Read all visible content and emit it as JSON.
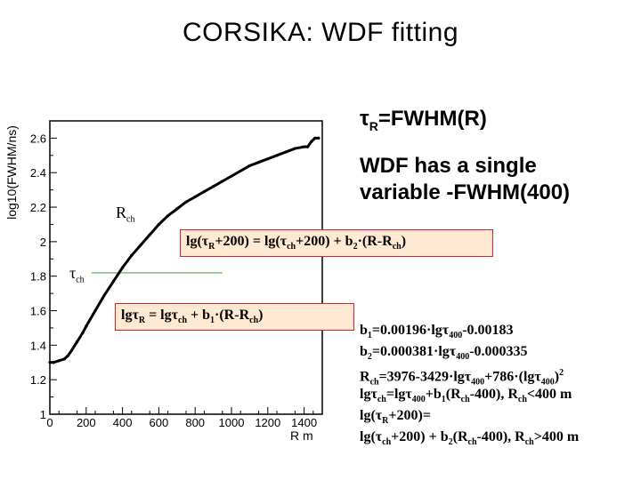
{
  "slide": {
    "title": "CORSIKA: WDF fitting"
  },
  "side_text": {
    "heading_tau": "τ",
    "heading_sub": "R",
    "heading_rest": "=FWHM(R)",
    "statement_line1": "WDF has a single",
    "statement_line2": "variable -FWHM(400)"
  },
  "annotations": {
    "rch_main": "R",
    "rch_sub": "ch",
    "tauch_main": "τ",
    "tauch_sub": "ch"
  },
  "formula_box_upper": {
    "p1": "lg(τ",
    "s1": "R",
    "p2": "+200) = lg(τ",
    "s2": "ch",
    "p3": "+200) + b",
    "s3": "2",
    "p4": "·(R-R",
    "s4": "ch",
    "p5": ")"
  },
  "formula_box_lower": {
    "p1": "lgτ",
    "s1": "R",
    "p2": " = lgτ",
    "s2": "ch",
    "p3": " + b",
    "s3": "1",
    "p4": "·(R-R",
    "s4": "ch",
    "p5": ")"
  },
  "equations": {
    "b1": {
      "a": "b",
      "as": "1",
      "b": "=0.00196·lgτ",
      "bs": "400",
      "c": "-0.00183"
    },
    "b2": {
      "a": "b",
      "as": "2",
      "b": "=0.000381·lgτ",
      "bs": "400",
      "c": "-0.000335"
    },
    "rch": {
      "a": "R",
      "as": "ch",
      "b": "=3976-3429·lgτ",
      "bs": "400",
      "c": "+786·(lgτ",
      "cs": "400",
      "d": ")",
      "dsup": "2"
    },
    "lgtauch": {
      "a": "lgτ",
      "as": "ch",
      "b": "=lgτ",
      "bs": "400",
      "c": "+b",
      "cs": "1",
      "d": "(R",
      "ds": "ch",
      "e": "-400), R",
      "es": "ch",
      "f": "<400 m"
    },
    "lgtaur_head": {
      "a": "lg(τ",
      "as": "R",
      "b": "+200)="
    },
    "lgtaur_tail": {
      "a": "lg(τ",
      "as": "ch",
      "b": "+200) + b",
      "bs": "2",
      "c": "(R",
      "cs": "ch",
      "d": "-400), R",
      "ds": "ch",
      "e": ">400 m"
    }
  },
  "chart_data": {
    "type": "line",
    "title": "",
    "xlabel": "R m",
    "ylabel": "log10(FWHM/ns)",
    "xlim": [
      0,
      1500
    ],
    "ylim": [
      1.0,
      2.7
    ],
    "x_ticks": [
      "0",
      "200",
      "400",
      "600",
      "800",
      "1000",
      "1200",
      "1400"
    ],
    "y_ticks": [
      "1",
      "1.2",
      "1.4",
      "1.6",
      "1.8",
      "2",
      "2.2",
      "2.4",
      "2.6"
    ],
    "grid": false,
    "reference_line": {
      "y": 1.82,
      "x_range": [
        230,
        950
      ],
      "color": "#7fbf7f"
    },
    "series": [
      {
        "color": "#000000",
        "x": [
          0,
          20,
          50,
          80,
          100,
          120,
          150,
          180,
          200,
          250,
          300,
          350,
          400,
          450,
          500,
          550,
          600,
          650,
          700,
          750,
          800,
          850,
          900,
          950,
          1000,
          1050,
          1100,
          1150,
          1200,
          1250,
          1300,
          1350,
          1400,
          1420,
          1440,
          1460,
          1480
        ],
        "y": [
          1.3,
          1.3,
          1.31,
          1.32,
          1.34,
          1.37,
          1.42,
          1.47,
          1.51,
          1.6,
          1.69,
          1.77,
          1.85,
          1.92,
          1.98,
          2.04,
          2.1,
          2.15,
          2.19,
          2.23,
          2.26,
          2.29,
          2.32,
          2.35,
          2.38,
          2.41,
          2.44,
          2.46,
          2.48,
          2.5,
          2.52,
          2.54,
          2.55,
          2.55,
          2.58,
          2.6,
          2.6
        ]
      }
    ]
  }
}
